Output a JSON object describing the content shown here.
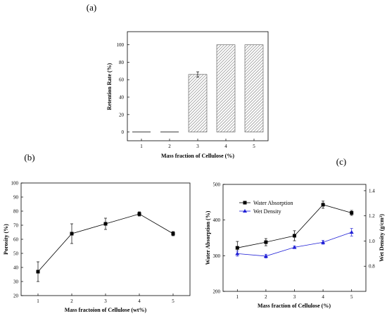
{
  "figure_labels": {
    "a": "(a)",
    "b": "(b)",
    "c": "(c)"
  },
  "colors": {
    "black": "#000000",
    "blue": "#1f1fd6",
    "hatch": "#777777"
  },
  "chart_data": [
    {
      "id": "a",
      "type": "bar",
      "title": "",
      "xlabel": "Mass fraction of Cellulose (%)",
      "ylabel": "Retention Rate (%)",
      "categories": [
        "1",
        "2",
        "3",
        "4",
        "5"
      ],
      "values": [
        0,
        0,
        66,
        100,
        100
      ],
      "errors": [
        0,
        0,
        3,
        0,
        0
      ],
      "ylim": [
        -10,
        115
      ],
      "yticks": [
        "0",
        "20",
        "40",
        "60",
        "80",
        "100"
      ],
      "fill": "diagonal hatch",
      "grid": false,
      "legend": "none"
    },
    {
      "id": "b",
      "type": "line",
      "title": "",
      "xlabel": "Mass fractoion of Cellulose (wt%)",
      "ylabel": "Porosity (%)",
      "x": [
        1,
        2,
        3,
        4,
        5
      ],
      "xticks": [
        "1",
        "2",
        "3",
        "4",
        "5"
      ],
      "series": [
        {
          "values": [
            37,
            64,
            71,
            78,
            64
          ],
          "errors": [
            7,
            7,
            4,
            1.5,
            1.5
          ],
          "marker": "square",
          "color": "#000000"
        }
      ],
      "xlim": [
        0.5,
        5.5
      ],
      "ylim": [
        20,
        100
      ],
      "yticks": [
        "20",
        "30",
        "40",
        "50",
        "60",
        "70",
        "80",
        "90",
        "100"
      ],
      "grid": false,
      "legend": "none"
    },
    {
      "id": "c",
      "type": "line",
      "title": "",
      "xlabel": "Mass fraction of Cellulose (%)",
      "ylabel": "Water Absorption (%)",
      "ylabel_right": "Wet Density (g/cm³)",
      "x": [
        1,
        2,
        3,
        4,
        5
      ],
      "xticks": [
        "1",
        "2",
        "3",
        "4",
        "5"
      ],
      "xlim": [
        0.5,
        5.5
      ],
      "ylim": [
        200,
        500
      ],
      "yticks": [
        "200",
        "300",
        "400",
        "500"
      ],
      "ylim_right": [
        0.6,
        1.45
      ],
      "yticks_right": [
        "0.8",
        "1.0",
        "1.2",
        "1.4"
      ],
      "series": [
        {
          "name": "Water Absorption",
          "axis": "left",
          "values": [
            322,
            338,
            356,
            443,
            420
          ],
          "errors": [
            18,
            10,
            14,
            10,
            7
          ],
          "marker": "square",
          "color": "#000000"
        },
        {
          "name": "Wet Density",
          "axis": "right",
          "values": [
            0.9,
            0.88,
            0.95,
            0.99,
            1.07
          ],
          "errors": [
            0.02,
            0.015,
            0.01,
            0.015,
            0.03
          ],
          "marker": "triangle",
          "color": "#1f1fd6"
        }
      ],
      "grid": false,
      "legend": "top-left"
    }
  ]
}
